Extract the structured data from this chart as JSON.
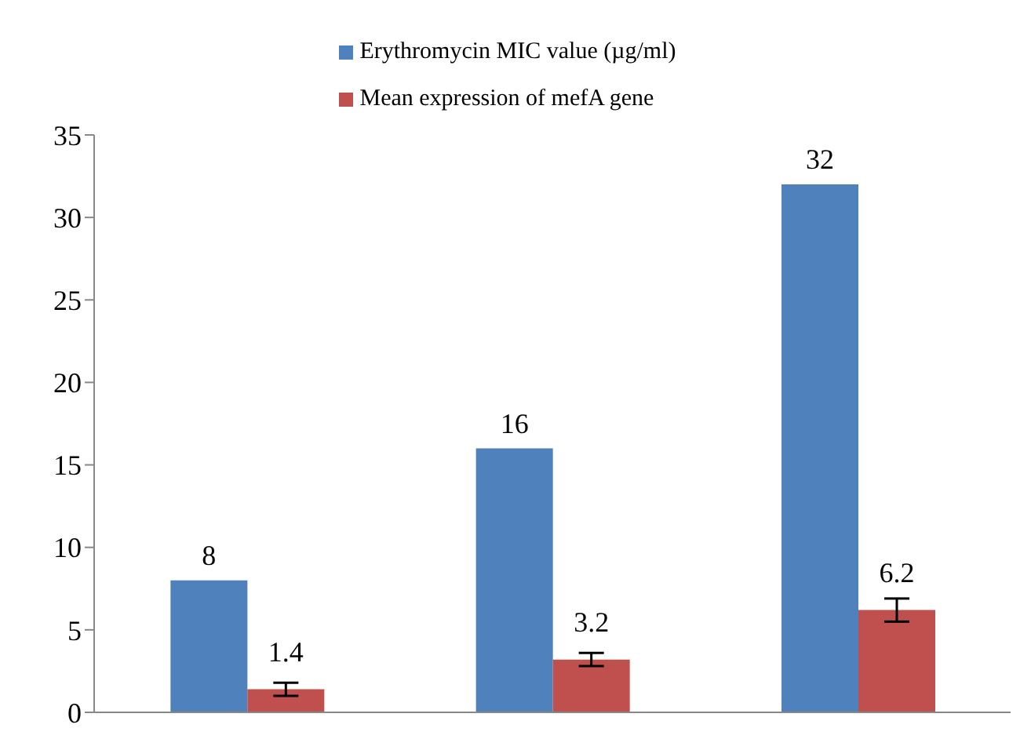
{
  "chart_data": {
    "type": "bar",
    "categories": [
      null,
      null,
      null
    ],
    "series": [
      {
        "name": "Erythromycin MIC value (µg/ml)",
        "color": "#4f81bd",
        "values": [
          8,
          16,
          32
        ]
      },
      {
        "name": "Mean expression of mefA gene",
        "color": "#c0504d",
        "values": [
          1.4,
          3.2,
          6.2
        ],
        "errors": [
          0.4,
          0.4,
          0.7
        ]
      }
    ],
    "ylim": [
      0,
      35
    ],
    "yticks": [
      0,
      5,
      10,
      15,
      20,
      25,
      30,
      35
    ],
    "grid": false,
    "legend": "top",
    "data_labels": true
  }
}
